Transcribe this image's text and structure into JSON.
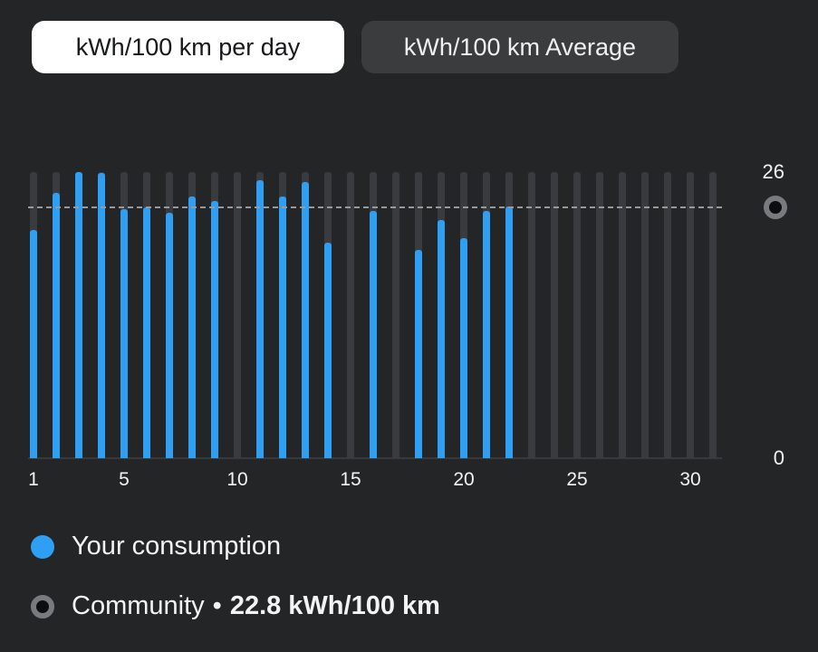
{
  "tabs": [
    {
      "label": "kWh/100 km per day",
      "active": true
    },
    {
      "label": "kWh/100 km Average",
      "active": false
    }
  ],
  "chart_data": {
    "type": "bar",
    "title": "kWh/100 km per day",
    "x": [
      1,
      2,
      3,
      4,
      5,
      6,
      7,
      8,
      9,
      10,
      11,
      12,
      13,
      14,
      15,
      16,
      17,
      18,
      19,
      20,
      21,
      22,
      23,
      24,
      25,
      26,
      27,
      28,
      29,
      30,
      31
    ],
    "series": [
      {
        "name": "Your consumption",
        "color": "#2e9ff2",
        "values": [
          20.7,
          24.1,
          26,
          25.9,
          22.6,
          22.8,
          22.3,
          23.8,
          23.4,
          null,
          25.3,
          23.8,
          25.1,
          19.6,
          null,
          22.5,
          null,
          18.9,
          21.6,
          20,
          22.5,
          22.9,
          null,
          null,
          null,
          null,
          null,
          null,
          null,
          null,
          null
        ]
      }
    ],
    "reference_line": {
      "name": "Community",
      "value": 22.8,
      "unit": "kWh/100 km",
      "style": "dashed",
      "color": "#98999b"
    },
    "ylim": [
      0,
      26
    ],
    "y_ticks": [
      {
        "value": 26,
        "label": "26"
      },
      {
        "value": 0,
        "label": "0"
      }
    ],
    "x_ticks": [
      {
        "value": 1,
        "label": "1"
      },
      {
        "value": 5,
        "label": "5"
      },
      {
        "value": 10,
        "label": "10"
      },
      {
        "value": 15,
        "label": "15"
      },
      {
        "value": 20,
        "label": "20"
      },
      {
        "value": 25,
        "label": "25"
      },
      {
        "value": 30,
        "label": "30"
      }
    ],
    "grid": false,
    "legend_position": "bottom",
    "track_color": "#3a3b3e"
  },
  "legend": [
    {
      "icon": "dot-icon",
      "color": "#2e9ff2",
      "label": "Your consumption"
    },
    {
      "icon": "ring-icon",
      "label": "Community",
      "separator": "•",
      "value": "22.8 kWh/100 km"
    }
  ],
  "colors": {
    "background": "#232527",
    "bar_blue": "#2e9ff2",
    "track_gray": "#3a3b3e",
    "active_tab_bg": "#ffffff",
    "active_tab_text": "#17181a",
    "inactive_tab_bg": "#3b3c3e",
    "text": "#f2f3f5"
  }
}
